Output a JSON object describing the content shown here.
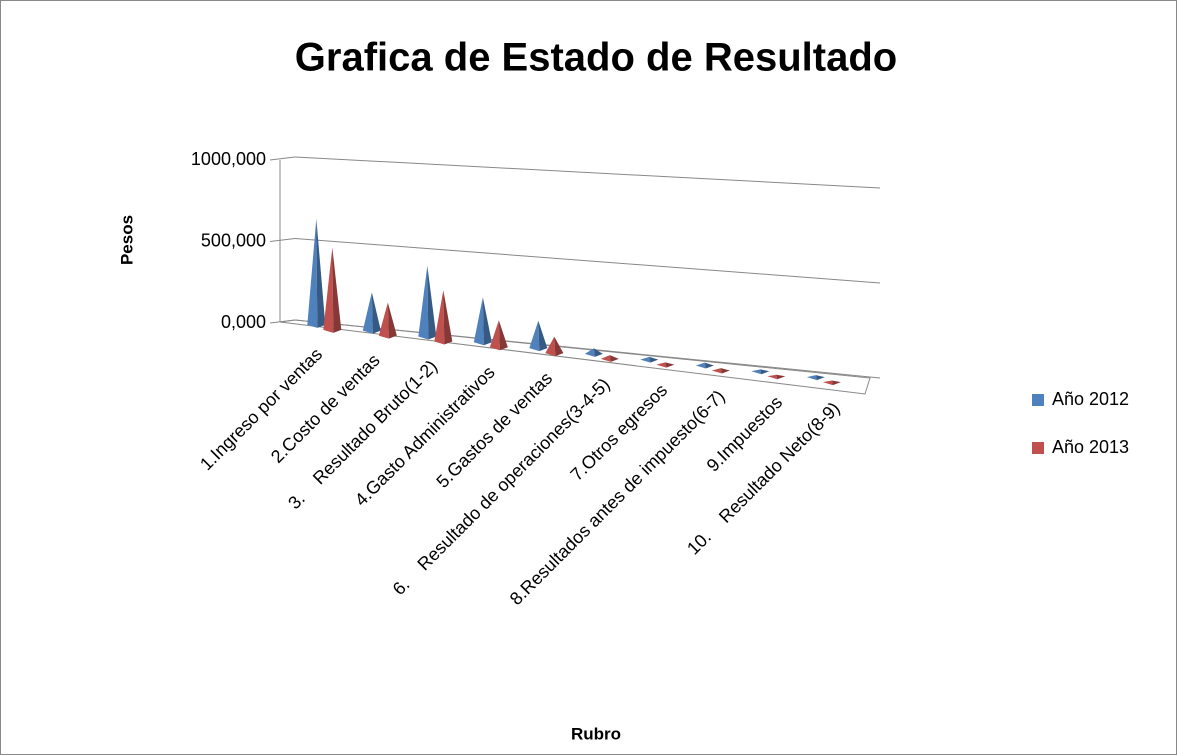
{
  "chart_data": {
    "type": "cone3d",
    "title": "Grafica de Estado de Resultado",
    "y_label": "Pesos",
    "x_label": "Rubro",
    "categories": [
      "1.Ingreso por ventas",
      "2.Costo de ventas",
      "3.    Resultado Bruto(1-2)",
      "4.Gasto Administrativos",
      "5.Gastos de ventas",
      "6.    Resultado de operaciones(3-4-5)",
      "7.Otros egresos",
      "8.Resultados antes de impuesto(6-7)",
      "9.Impuestos",
      "10.    Resultado Neto(8-9)"
    ],
    "series": [
      {
        "name": "Año 2012",
        "color": "#4f81bd",
        "values": [
          620000,
          220000,
          400000,
          250000,
          150000,
          30000,
          15000,
          15000,
          10000,
          10000
        ]
      },
      {
        "name": "Año 2013",
        "color": "#c0504d",
        "values": [
          480000,
          190000,
          290000,
          150000,
          90000,
          20000,
          12000,
          12000,
          8000,
          8000
        ]
      }
    ],
    "ylim": [
      0,
      1000000
    ],
    "yticks": [
      {
        "value": 0,
        "label": "0,000"
      },
      {
        "value": 500000,
        "label": "500,000"
      },
      {
        "value": 1000000,
        "label": "1000,000"
      }
    ],
    "grid": true,
    "legend": "right"
  }
}
